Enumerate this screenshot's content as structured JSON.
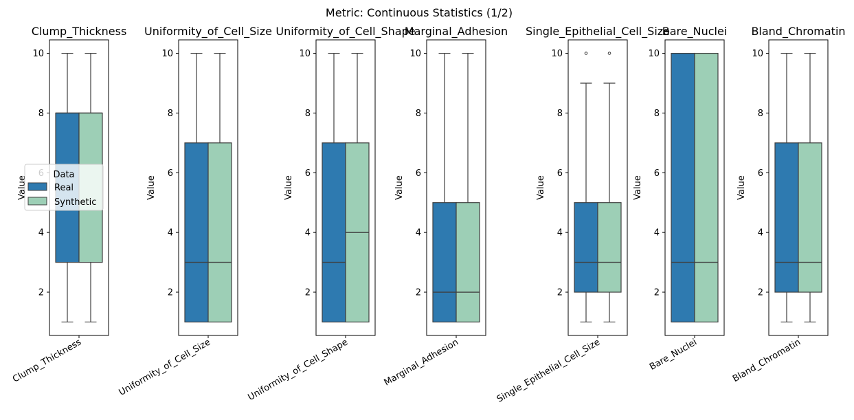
{
  "chart_data": {
    "type": "box",
    "title": "Metric: Continuous Statistics (1/2)",
    "ylabel": "Value",
    "ylim": [
      0.55,
      10.45
    ],
    "yticks": [
      2,
      4,
      6,
      8,
      10
    ],
    "legend": {
      "title": "Data",
      "placement": "center-left of first subplot",
      "entries": [
        "Real",
        "Synthetic"
      ]
    },
    "colors": {
      "Real": "#2e7ab0",
      "Synthetic": "#9dcfb6",
      "line": "#3f3f3f"
    },
    "panels": [
      {
        "title": "Clump_Thickness",
        "category": "Clump_Thickness",
        "series": [
          {
            "name": "Real",
            "whisker_low": 1,
            "q1": 3,
            "median": 8,
            "q3": 8,
            "whisker_high": 10,
            "outliers": []
          },
          {
            "name": "Synthetic",
            "whisker_low": 1,
            "q1": 3,
            "median": 8,
            "q3": 8,
            "whisker_high": 10,
            "outliers": []
          }
        ]
      },
      {
        "title": "Uniformity_of_Cell_Size",
        "category": "Uniformity_of_Cell_Size",
        "series": [
          {
            "name": "Real",
            "whisker_low": 1,
            "q1": 1,
            "median": 3,
            "q3": 7,
            "whisker_high": 10,
            "outliers": []
          },
          {
            "name": "Synthetic",
            "whisker_low": 1,
            "q1": 1,
            "median": 3,
            "q3": 7,
            "whisker_high": 10,
            "outliers": []
          }
        ]
      },
      {
        "title": "Uniformity_of_Cell_Shape",
        "category": "Uniformity_of_Cell_Shape",
        "series": [
          {
            "name": "Real",
            "whisker_low": 1,
            "q1": 1,
            "median": 3,
            "q3": 7,
            "whisker_high": 10,
            "outliers": []
          },
          {
            "name": "Synthetic",
            "whisker_low": 1,
            "q1": 1,
            "median": 4,
            "q3": 7,
            "whisker_high": 10,
            "outliers": []
          }
        ]
      },
      {
        "title": "Marginal_Adhesion",
        "category": "Marginal_Adhesion",
        "series": [
          {
            "name": "Real",
            "whisker_low": 1,
            "q1": 1,
            "median": 2,
            "q3": 5,
            "whisker_high": 10,
            "outliers": []
          },
          {
            "name": "Synthetic",
            "whisker_low": 1,
            "q1": 1,
            "median": 2,
            "q3": 5,
            "whisker_high": 10,
            "outliers": []
          }
        ]
      },
      {
        "title": "Single_Epithelial_Cell_Size",
        "category": "Single_Epithelial_Cell_Size",
        "series": [
          {
            "name": "Real",
            "whisker_low": 1,
            "q1": 2,
            "median": 3,
            "q3": 5,
            "whisker_high": 9,
            "outliers": [
              10
            ]
          },
          {
            "name": "Synthetic",
            "whisker_low": 1,
            "q1": 2,
            "median": 3,
            "q3": 5,
            "whisker_high": 9,
            "outliers": [
              10
            ]
          }
        ]
      },
      {
        "title": "Bare_Nuclei",
        "category": "Bare_Nuclei",
        "series": [
          {
            "name": "Real",
            "whisker_low": 1,
            "q1": 1,
            "median": 3,
            "q3": 10,
            "whisker_high": 10,
            "outliers": []
          },
          {
            "name": "Synthetic",
            "whisker_low": 1,
            "q1": 1,
            "median": 3,
            "q3": 10,
            "whisker_high": 10,
            "outliers": []
          }
        ]
      },
      {
        "title": "Bland_Chromatin",
        "category": "Bland_Chromatin",
        "series": [
          {
            "name": "Real",
            "whisker_low": 1,
            "q1": 2,
            "median": 3,
            "q3": 7,
            "whisker_high": 10,
            "outliers": []
          },
          {
            "name": "Synthetic",
            "whisker_low": 1,
            "q1": 2,
            "median": 3,
            "q3": 7,
            "whisker_high": 10,
            "outliers": []
          }
        ]
      }
    ]
  }
}
